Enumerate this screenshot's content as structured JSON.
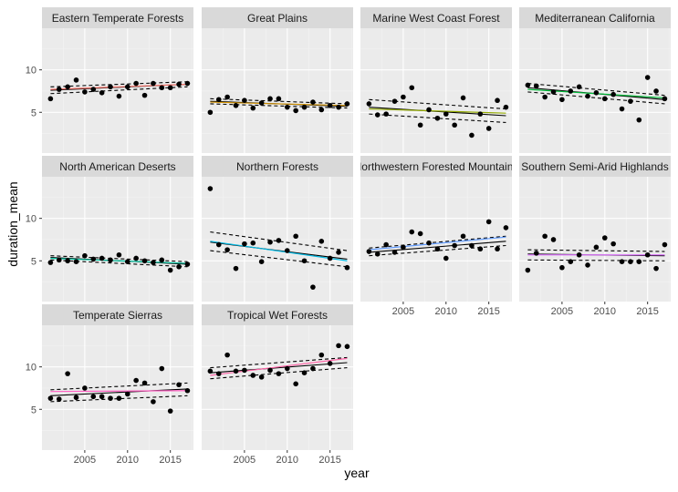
{
  "chart_data": {
    "type": "scatter",
    "xlabel": "year",
    "ylabel": "duration_mean",
    "x_ticks": [
      2005,
      2010,
      2015
    ],
    "y_ticks": [
      5,
      10
    ],
    "xlim": [
      2000.0,
      2017.7
    ],
    "ylim": [
      0.2,
      14.9
    ],
    "grid": true,
    "legend": "none",
    "colors": {
      "panel_bg": "#ebebeb",
      "strip_bg": "#d9d9d9",
      "grid_major": "#ffffff",
      "grid_minor": "#f3f3f3",
      "point": "#000000",
      "trend": "#000000",
      "band": "#000000"
    },
    "panels": [
      {
        "name": "Eastern Temperate Forests",
        "color": "#f8766d",
        "x": [
          2001,
          2002,
          2003,
          2004,
          2005,
          2006,
          2007,
          2008,
          2009,
          2010,
          2011,
          2012,
          2013,
          2014,
          2015,
          2016,
          2017
        ],
        "y": [
          6.6,
          7.7,
          8.0,
          8.8,
          7.4,
          7.7,
          7.3,
          8.0,
          6.9,
          8.0,
          8.4,
          7.0,
          8.4,
          7.9,
          7.9,
          8.3,
          8.4
        ],
        "fit": [
          7.6,
          8.3
        ],
        "ci_low": [
          7.2,
          8.0
        ],
        "ci_high": [
          8.0,
          8.6
        ],
        "trend": [
          7.7,
          8.3
        ]
      },
      {
        "name": "Great Plains",
        "color": "#d39200",
        "x": [
          2001,
          2002,
          2003,
          2004,
          2005,
          2006,
          2007,
          2008,
          2009,
          2010,
          2011,
          2012,
          2013,
          2014,
          2015,
          2016,
          2017
        ],
        "y": [
          5.0,
          6.5,
          6.8,
          5.8,
          6.4,
          5.5,
          6.1,
          6.6,
          6.6,
          5.6,
          5.2,
          5.6,
          6.2,
          5.3,
          5.8,
          5.6,
          6.0
        ],
        "fit": [
          6.3,
          5.7
        ],
        "ci_low": [
          6.0,
          5.5
        ],
        "ci_high": [
          6.6,
          6.0
        ],
        "trend": [
          6.2,
          5.8
        ]
      },
      {
        "name": "Marine West Coast Forest",
        "color": "#93aa00",
        "x": [
          2001,
          2002,
          2003,
          2004,
          2005,
          2006,
          2007,
          2008,
          2009,
          2010,
          2011,
          2012,
          2013,
          2014,
          2015,
          2016,
          2017
        ],
        "y": [
          6.0,
          4.7,
          4.8,
          6.3,
          6.8,
          7.9,
          3.5,
          5.3,
          4.3,
          4.8,
          3.5,
          6.7,
          2.3,
          4.8,
          3.1,
          6.4,
          5.6
        ],
        "fit": [
          5.6,
          4.6
        ],
        "ci_low": [
          4.8,
          3.8
        ],
        "ci_high": [
          6.5,
          5.4
        ],
        "trend": [
          5.4,
          4.9
        ]
      },
      {
        "name": "Mediterranean California",
        "color": "#00ba38",
        "x": [
          2001,
          2002,
          2003,
          2004,
          2005,
          2006,
          2007,
          2008,
          2009,
          2010,
          2011,
          2012,
          2013,
          2014,
          2015,
          2016,
          2017
        ],
        "y": [
          8.2,
          8.1,
          6.8,
          7.4,
          6.5,
          7.5,
          8.0,
          6.9,
          7.3,
          6.6,
          7.1,
          5.4,
          6.3,
          4.1,
          9.1,
          7.5,
          6.6
        ],
        "fit": [
          7.9,
          6.5
        ],
        "ci_low": [
          7.4,
          6.0
        ],
        "ci_high": [
          8.4,
          7.0
        ],
        "trend": [
          7.7,
          6.7
        ]
      },
      {
        "name": "North American Deserts",
        "color": "#00c19f",
        "x": [
          2001,
          2002,
          2003,
          2004,
          2005,
          2006,
          2007,
          2008,
          2009,
          2010,
          2011,
          2012,
          2013,
          2014,
          2015,
          2016,
          2017
        ],
        "y": [
          4.8,
          5.1,
          5.0,
          4.9,
          5.6,
          5.2,
          5.3,
          5.1,
          5.7,
          4.9,
          5.3,
          5.0,
          4.8,
          5.1,
          3.9,
          4.3,
          4.6
        ],
        "fit": [
          5.4,
          4.6
        ],
        "ci_low": [
          5.1,
          4.3
        ],
        "ci_high": [
          5.6,
          4.9
        ],
        "trend": [
          5.3,
          4.7
        ]
      },
      {
        "name": "Northern Forests",
        "color": "#00b9e3",
        "x": [
          2001,
          2002,
          2003,
          2004,
          2005,
          2006,
          2007,
          2008,
          2009,
          2010,
          2011,
          2012,
          2013,
          2014,
          2015,
          2016,
          2017
        ],
        "y": [
          13.5,
          6.9,
          6.3,
          4.1,
          7.0,
          7.1,
          4.9,
          7.2,
          7.4,
          6.2,
          7.9,
          5.0,
          1.9,
          7.3,
          5.3,
          6.0,
          4.2
        ],
        "fit": [
          7.2,
          5.2
        ],
        "ci_low": [
          6.2,
          4.3
        ],
        "ci_high": [
          8.4,
          6.2
        ],
        "trend": [
          7.3,
          5.0
        ]
      },
      {
        "name": "Northwestern Forested Mountains",
        "color": "#619cff",
        "x": [
          2001,
          2002,
          2003,
          2004,
          2005,
          2006,
          2007,
          2008,
          2009,
          2010,
          2011,
          2012,
          2013,
          2014,
          2015,
          2016,
          2017
        ],
        "y": [
          6.1,
          5.8,
          6.9,
          6.0,
          6.6,
          8.4,
          8.2,
          7.1,
          6.4,
          5.3,
          6.8,
          7.9,
          6.8,
          6.4,
          9.6,
          6.4,
          8.9
        ],
        "fit": [
          6.0,
          7.3
        ],
        "ci_low": [
          5.6,
          6.8
        ],
        "ci_high": [
          6.5,
          7.9
        ],
        "trend": [
          6.3,
          7.8
        ]
      },
      {
        "name": "Southern Semi-Arid Highlands",
        "color": "#db72fb",
        "x": [
          2001,
          2002,
          2003,
          2004,
          2005,
          2006,
          2007,
          2008,
          2009,
          2010,
          2011,
          2012,
          2013,
          2014,
          2015,
          2016,
          2017
        ],
        "y": [
          3.9,
          5.9,
          7.9,
          7.5,
          4.2,
          4.9,
          5.7,
          4.5,
          6.6,
          7.7,
          7.0,
          4.9,
          4.9,
          4.9,
          5.7,
          4.1,
          6.9
        ],
        "fit": [
          5.8,
          5.6
        ],
        "ci_low": [
          5.1,
          5.0
        ],
        "ci_high": [
          6.3,
          6.1
        ],
        "trend": [
          5.7,
          5.7
        ]
      },
      {
        "name": "Temperate Sierras",
        "color": "#ff61c3",
        "x": [
          2001,
          2002,
          2003,
          2004,
          2005,
          2006,
          2007,
          2008,
          2009,
          2010,
          2011,
          2012,
          2013,
          2014,
          2015,
          2016,
          2017
        ],
        "y": [
          6.3,
          6.2,
          9.2,
          6.4,
          7.5,
          6.5,
          6.5,
          6.3,
          6.3,
          6.8,
          8.4,
          8.1,
          5.9,
          9.8,
          4.8,
          7.9,
          7.2
        ],
        "fit": [
          6.6,
          7.4
        ],
        "ci_low": [
          5.9,
          6.6
        ],
        "ci_high": [
          7.3,
          8.1
        ],
        "trend": [
          7.1,
          7.2
        ]
      },
      {
        "name": "Tropical Wet Forests",
        "color": "#ff66a8",
        "x": [
          2001,
          2002,
          2003,
          2004,
          2005,
          2006,
          2007,
          2008,
          2009,
          2010,
          2011,
          2012,
          2013,
          2014,
          2015,
          2016,
          2017
        ],
        "y": [
          9.5,
          9.2,
          11.4,
          9.5,
          9.6,
          9.0,
          8.8,
          9.6,
          9.2,
          9.8,
          8.0,
          9.3,
          9.8,
          11.4,
          10.4,
          12.5,
          12.4
        ],
        "fit": [
          9.3,
          10.5
        ],
        "ci_low": [
          8.6,
          9.9
        ],
        "ci_high": [
          9.9,
          11.1
        ],
        "trend": [
          9.0,
          11.0
        ]
      }
    ]
  }
}
